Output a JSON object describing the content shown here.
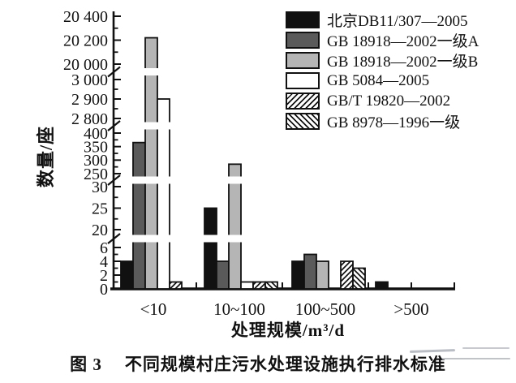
{
  "figure": {
    "caption_prefix": "图 3",
    "caption_text": "不同规模村庄污水处理设施执行排水标准"
  },
  "chart_data": {
    "type": "bar",
    "title": "",
    "xlabel": "处理规模/m³/d",
    "ylabel": "数量/座",
    "categories": [
      "<10",
      "10~100",
      "100~500",
      ">500"
    ],
    "series": [
      {
        "name": "北京DB11/307—2005",
        "style": "solid-black",
        "color": "#111111",
        "values": [
          4,
          25,
          4,
          1
        ]
      },
      {
        "name": "GB 18918—2002一级A",
        "style": "solid-darkgray",
        "color": "#5a5a5a",
        "values": [
          365,
          4,
          5,
          0
        ]
      },
      {
        "name": "GB 18918—2002一级B",
        "style": "solid-lightgray",
        "color": "#b5b5b5",
        "values": [
          20220,
          285,
          4,
          0
        ]
      },
      {
        "name": "GB 5084—2005",
        "style": "solid-white",
        "color": "#ffffff",
        "values": [
          2900,
          1,
          0,
          0
        ]
      },
      {
        "name": "GB/T 19820—2002",
        "style": "hatch-forward",
        "color": "#ffffff",
        "values": [
          1,
          1,
          4,
          0
        ]
      },
      {
        "name": "GB 8978—1996一级",
        "style": "hatch-backward",
        "color": "#ffffff",
        "values": [
          0,
          1,
          3,
          0
        ]
      }
    ],
    "y_axis": {
      "broken": true,
      "unit": "座",
      "segments": [
        {
          "min": 0,
          "max": 6,
          "ticks": [
            0,
            2,
            4,
            6
          ],
          "tick_labels": [
            "0",
            "2",
            "4",
            "6"
          ]
        },
        {
          "min": 20,
          "max": 30,
          "ticks": [
            20,
            25,
            30
          ],
          "tick_labels": [
            "20",
            "25",
            "30"
          ]
        },
        {
          "min": 250,
          "max": 400,
          "ticks": [
            250,
            300,
            350,
            400
          ],
          "tick_labels": [
            "250",
            "300",
            "350",
            "400"
          ]
        },
        {
          "min": 2800,
          "max": 3000,
          "ticks": [
            2800,
            2900,
            3000
          ],
          "tick_labels": [
            "2 800",
            "2 900",
            "3 000"
          ]
        },
        {
          "min": 20000,
          "max": 20400,
          "ticks": [
            20000,
            20200,
            20400
          ],
          "tick_labels": [
            "20 000",
            "20 200",
            "20 400"
          ]
        }
      ]
    },
    "legend_position": "top-right",
    "grid": false,
    "stroke_color": "#111111"
  }
}
